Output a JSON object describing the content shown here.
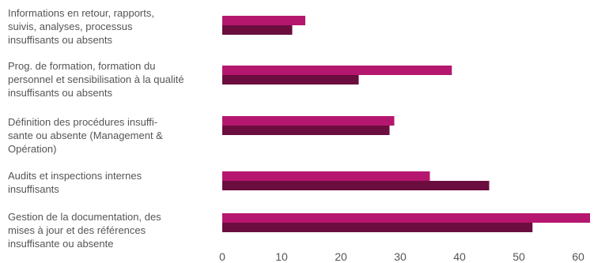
{
  "colors": {
    "series_a": "#b5176f",
    "series_b": "#6b0d3e",
    "text": "#555555"
  },
  "chart_data": {
    "type": "bar",
    "orientation": "horizontal",
    "categories": [
      "Informations en retour, rapports,\nsuivis, analyses, processus\ninsuffisants ou absents",
      "Prog. de formation, formation du\npersonnel et sensibilisation à la qualité\ninsuffisants ou absents",
      "Définition des procédures insuffi-\nsante ou absente (Management &\nOpération)",
      "Audits et inspections internes\ninsuffisants",
      "Gestion de la documentation, des\nmises à jour et des références\ninsuffisante ou absente"
    ],
    "series": [
      {
        "values": [
          14,
          38.7,
          29,
          35,
          62
        ]
      },
      {
        "values": [
          11.8,
          23,
          28.2,
          45,
          52.3
        ]
      }
    ],
    "xlim": [
      0,
      62
    ],
    "xticks": [
      0,
      10,
      20,
      30,
      40,
      50,
      60
    ],
    "title": "",
    "xlabel": "",
    "ylabel": "",
    "grid": false,
    "legend": "none"
  }
}
